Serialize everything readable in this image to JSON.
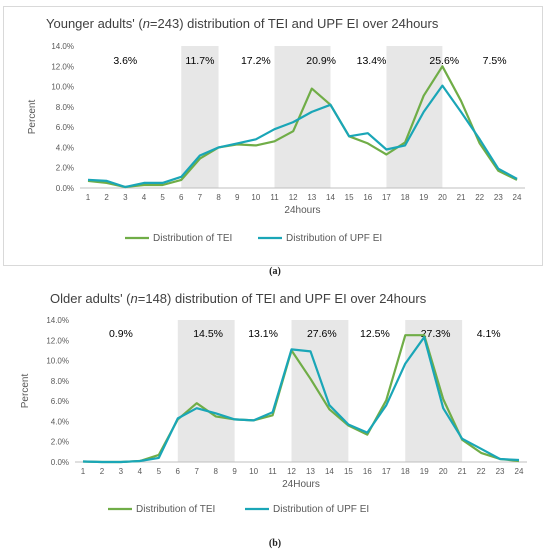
{
  "panels": [
    {
      "caption": "(a)",
      "chart_data": {
        "type": "line",
        "title": "Younger adults' (n=243) distribution of TEI and UPF EI over  24hours",
        "title_parts": [
          "Younger adults' (",
          "n",
          "=243) distribution of TEI and UPF EI over  24hours"
        ],
        "xlabel": "24hours",
        "ylabel": "Percent",
        "ylim": [
          0,
          14
        ],
        "yticks": [
          "0.0%",
          "2.0%",
          "4.0%",
          "6.0%",
          "8.0%",
          "10.0%",
          "12.0%",
          "14.0%"
        ],
        "x": [
          "1",
          "2",
          "3",
          "4",
          "5",
          "6",
          "7",
          "8",
          "9",
          "10",
          "11",
          "12",
          "13",
          "14",
          "15",
          "16",
          "17",
          "18",
          "19",
          "20",
          "21",
          "22",
          "23",
          "24"
        ],
        "series": [
          {
            "name": "Distribution of TEI",
            "color": "#70ad47",
            "values": [
              0.7,
              0.5,
              0.1,
              0.3,
              0.3,
              0.8,
              2.9,
              4.0,
              4.3,
              4.2,
              4.6,
              5.6,
              9.8,
              8.2,
              5.1,
              4.4,
              3.3,
              4.5,
              9.1,
              12.0,
              8.6,
              4.4,
              1.7,
              0.8
            ]
          },
          {
            "name": "Distribution of UPF EI",
            "color": "#1aa6b7",
            "values": [
              0.8,
              0.7,
              0.1,
              0.5,
              0.5,
              1.1,
              3.2,
              4.0,
              4.4,
              4.8,
              5.8,
              6.5,
              7.5,
              8.2,
              5.1,
              5.4,
              3.8,
              4.2,
              7.5,
              10.1,
              7.5,
              4.8,
              1.9,
              0.9
            ]
          }
        ],
        "shaded_ranges": [
          [
            6,
            8
          ],
          [
            11,
            14
          ],
          [
            17,
            20
          ]
        ],
        "period_labels": [
          {
            "text": "3.6%",
            "x": 3
          },
          {
            "text": "11.7%",
            "x": 7
          },
          {
            "text": "17.2%",
            "x": 10
          },
          {
            "text": "20.9%",
            "x": 13.5
          },
          {
            "text": "13.4%",
            "x": 16.2
          },
          {
            "text": "25.6%",
            "x": 20.1
          },
          {
            "text": "7.5%",
            "x": 22.8
          }
        ],
        "grid": false,
        "legend_position": "bottom"
      }
    },
    {
      "caption": "(b)",
      "chart_data": {
        "type": "line",
        "title": "Older adults' (n=148) distribution of TEI and UPF EI over 24hours",
        "title_parts": [
          "Older adults' (",
          "n",
          "=148) distribution of TEI and UPF EI over 24hours"
        ],
        "xlabel": "24Hours",
        "ylabel": "Percent",
        "ylim": [
          0,
          14
        ],
        "yticks": [
          "0.0%",
          "2.0%",
          "4.0%",
          "6.0%",
          "8.0%",
          "10.0%",
          "12.0%",
          "14.0%"
        ],
        "x": [
          "1",
          "2",
          "3",
          "4",
          "5",
          "6",
          "7",
          "8",
          "9",
          "10",
          "11",
          "12",
          "13",
          "14",
          "15",
          "16",
          "17",
          "18",
          "19",
          "20",
          "21",
          "22",
          "23",
          "24"
        ],
        "series": [
          {
            "name": "Distribution of TEI",
            "color": "#70ad47",
            "values": [
              0.05,
              0.0,
              0.0,
              0.1,
              0.7,
              4.2,
              5.8,
              4.5,
              4.2,
              4.1,
              4.6,
              11.0,
              8.2,
              5.2,
              3.6,
              2.7,
              6.1,
              12.5,
              12.5,
              6.2,
              2.2,
              0.9,
              0.3,
              0.1
            ]
          },
          {
            "name": "Distribution of UPF EI",
            "color": "#1aa6b7",
            "values": [
              0.05,
              0.0,
              0.0,
              0.1,
              0.4,
              4.3,
              5.3,
              4.8,
              4.2,
              4.1,
              4.9,
              11.1,
              10.9,
              5.6,
              3.7,
              2.9,
              5.6,
              9.7,
              12.3,
              5.3,
              2.3,
              1.3,
              0.3,
              0.2
            ]
          }
        ],
        "shaded_ranges": [
          [
            6,
            9
          ],
          [
            12,
            15
          ],
          [
            18,
            21
          ]
        ],
        "period_labels": [
          {
            "text": "0.9%",
            "x": 3
          },
          {
            "text": "14.5%",
            "x": 7.6
          },
          {
            "text": "13.1%",
            "x": 10.5
          },
          {
            "text": "27.6%",
            "x": 13.6
          },
          {
            "text": "12.5%",
            "x": 16.4
          },
          {
            "text": "27.3%",
            "x": 19.6
          },
          {
            "text": "4.1%",
            "x": 22.4
          }
        ],
        "grid": false,
        "legend_position": "bottom"
      }
    }
  ]
}
